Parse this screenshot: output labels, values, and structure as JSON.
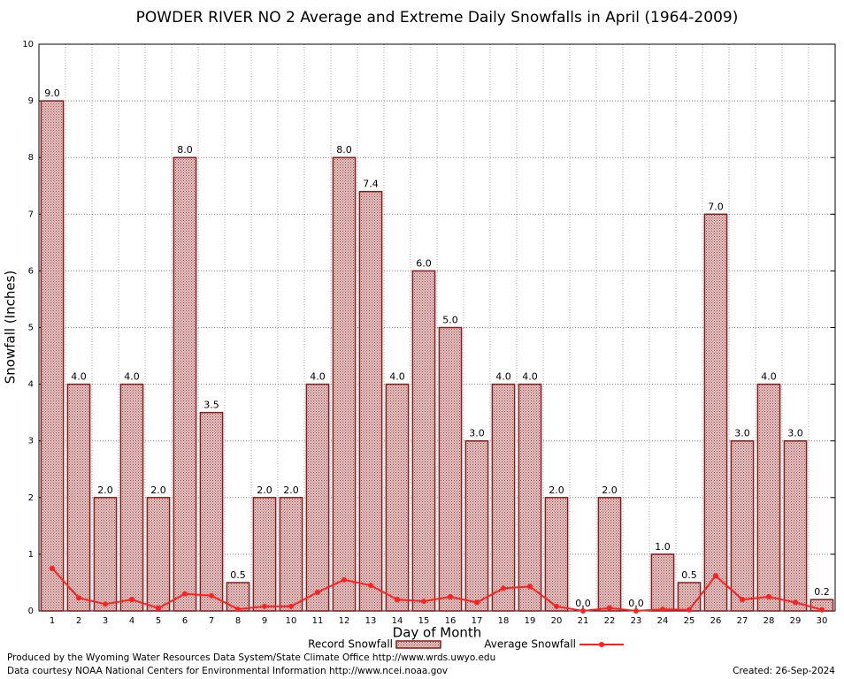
{
  "chart_data": {
    "type": "bar",
    "title": "POWDER RIVER NO 2 Average and Extreme Daily Snowfalls in April (1964-2009)",
    "x_label": "Day of Month",
    "y_label": "Snowfall (Inches)",
    "categories": [
      "1",
      "2",
      "3",
      "4",
      "5",
      "6",
      "7",
      "8",
      "9",
      "10",
      "11",
      "12",
      "13",
      "14",
      "15",
      "16",
      "17",
      "18",
      "19",
      "20",
      "21",
      "22",
      "23",
      "24",
      "25",
      "26",
      "27",
      "28",
      "29",
      "30"
    ],
    "series": [
      {
        "name": "Record Snowfall",
        "type": "bar",
        "color": "#8b1a1a",
        "values": [
          9,
          4,
          2,
          4,
          2,
          8,
          3.5,
          0.5,
          2,
          2,
          4,
          8,
          7.4,
          4,
          6,
          5,
          3,
          4,
          4,
          2,
          0,
          2,
          0,
          1,
          0.5,
          7,
          3,
          4,
          3,
          0.2
        ],
        "value_labels": [
          "9.0",
          "4.0",
          "2.0",
          "4.0",
          "2.0",
          "8.0",
          "3.5",
          "0.5",
          "2.0",
          "2.0",
          "4.0",
          "8.0",
          "7.4",
          "4.0",
          "6.0",
          "5.0",
          "3.0",
          "4.0",
          "4.0",
          "2.0",
          "0.0",
          "2.0",
          "0.0",
          "1.0",
          "0.5",
          "7.0",
          "3.0",
          "4.0",
          "3.0",
          "0.2"
        ]
      },
      {
        "name": "Average Snowfall",
        "type": "line",
        "color": "#ff2020",
        "values": [
          0.75,
          0.23,
          0.12,
          0.2,
          0.05,
          0.3,
          0.27,
          0.03,
          0.08,
          0.08,
          0.33,
          0.55,
          0.45,
          0.2,
          0.17,
          0.25,
          0.15,
          0.4,
          0.43,
          0.08,
          0,
          0.05,
          0,
          0.03,
          0.02,
          0.62,
          0.2,
          0.25,
          0.15,
          0.02
        ]
      }
    ],
    "ylim": [
      0,
      10
    ],
    "yticks": [
      0,
      1,
      2,
      3,
      4,
      5,
      6,
      7,
      8,
      9,
      10
    ],
    "grid": true,
    "legend": "bottom",
    "footer": [
      "Produced by the Wyoming Water Resources Data System/State Climate Office http://www.wrds.uwyo.edu",
      "Data courtesy NOAA National Centers for Environmental Information http://www.ncei.noaa.gov"
    ],
    "created": "Created: 26-Sep-2024"
  }
}
